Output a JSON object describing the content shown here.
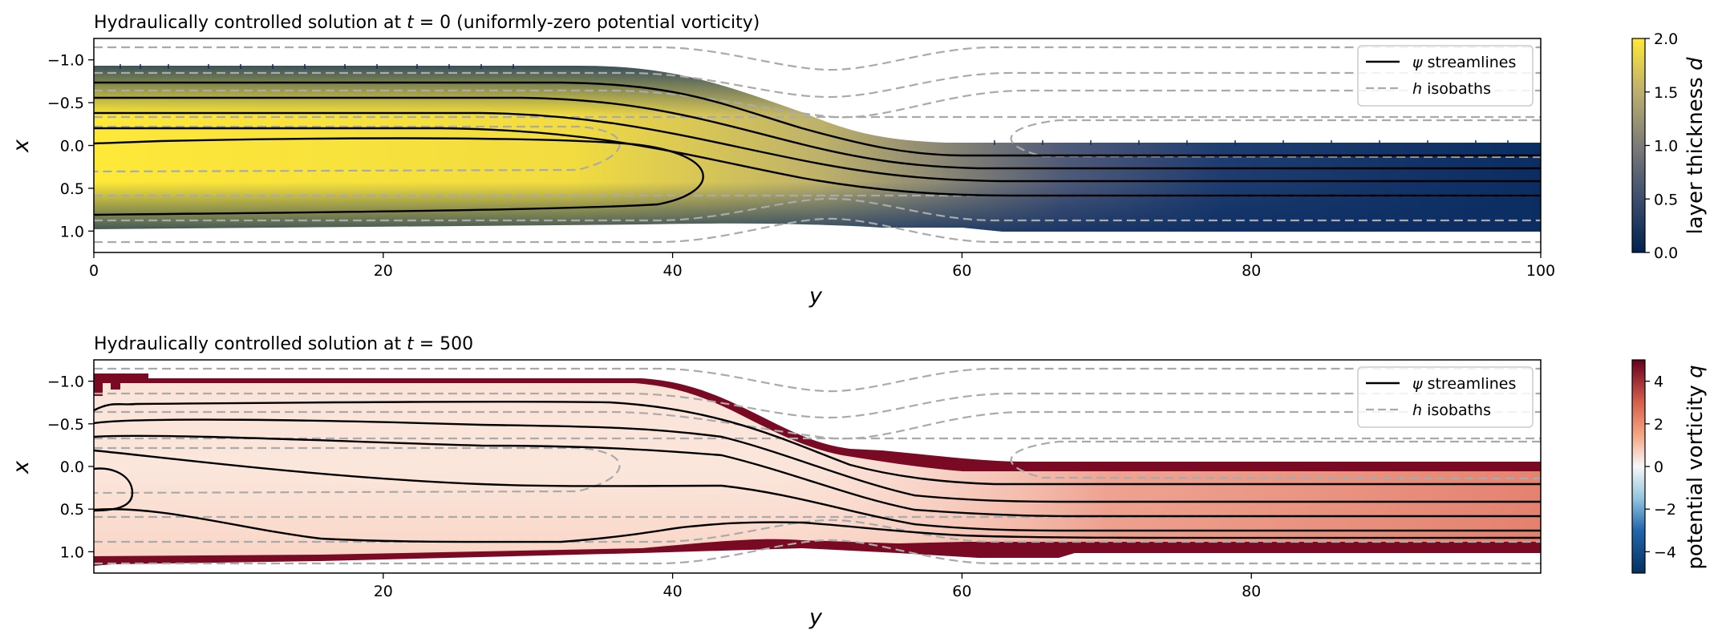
{
  "colors": {
    "thickness_low": "#00224e",
    "thickness_mid": "#7c7b78",
    "thickness_high": "#fee838",
    "pv_low": "#053061",
    "pv_mid": "#f7f7f7",
    "pv_high": "#67001f",
    "streamline": "#000000",
    "isobath": "#aaaaaa"
  },
  "chart_data": [
    {
      "type": "heatmap",
      "title_plain": "Hydraulically controlled solution at ",
      "title_var": "t",
      "title_suffix": " = 0 (uniformly-zero potential vorticity)",
      "xlabel": "y",
      "ylabel": "x",
      "xlim": [
        0,
        100
      ],
      "ylim": [
        1.25,
        -1.25
      ],
      "x_ticks": [
        0,
        20,
        40,
        60,
        80,
        100
      ],
      "y_ticks": [
        -1.0,
        -0.5,
        0.0,
        0.5,
        1.0
      ],
      "x_tick_labels": [
        "0",
        "20",
        "40",
        "60",
        "80",
        "100"
      ],
      "y_tick_labels": [
        "−1.0",
        "−0.5",
        "0.0",
        "0.5",
        "1.0"
      ],
      "colorbar": {
        "label_plain": "layer thickness ",
        "label_var": "d",
        "range": [
          0,
          2
        ],
        "ticks": [
          "0.0",
          "0.5",
          "1.0",
          "1.5",
          "2.0"
        ],
        "colormap": "cividis"
      },
      "legend": {
        "position": "top-right",
        "entries": [
          {
            "var": "ψ",
            "text": " streamlines",
            "style": "solid"
          },
          {
            "var": "h",
            "text": " isobaths",
            "style": "dashed"
          }
        ]
      },
      "grid": false
    },
    {
      "type": "heatmap",
      "title_plain": "Hydraulically controlled solution at ",
      "title_var": "t",
      "title_suffix": " = 500",
      "xlabel": "y",
      "ylabel": "x",
      "xlim": [
        0,
        100
      ],
      "ylim": [
        1.25,
        -1.25
      ],
      "x_ticks": [
        20,
        40,
        60,
        80
      ],
      "y_ticks": [
        -1.0,
        -0.5,
        0.0,
        0.5,
        1.0
      ],
      "x_tick_labels": [
        "20",
        "40",
        "60",
        "80"
      ],
      "y_tick_labels": [
        "−1.0",
        "−0.5",
        "0.0",
        "0.5",
        "1.0"
      ],
      "colorbar": {
        "label_plain": "potential vorticity ",
        "label_var": "q",
        "range": [
          -5,
          5
        ],
        "ticks": [
          "−4",
          "−2",
          "0",
          "2",
          "4"
        ],
        "colormap": "RdBu_r"
      },
      "legend": {
        "position": "top-right",
        "entries": [
          {
            "var": "ψ",
            "text": " streamlines",
            "style": "solid"
          },
          {
            "var": "h",
            "text": " isobaths",
            "style": "dashed"
          }
        ]
      },
      "grid": false
    }
  ]
}
